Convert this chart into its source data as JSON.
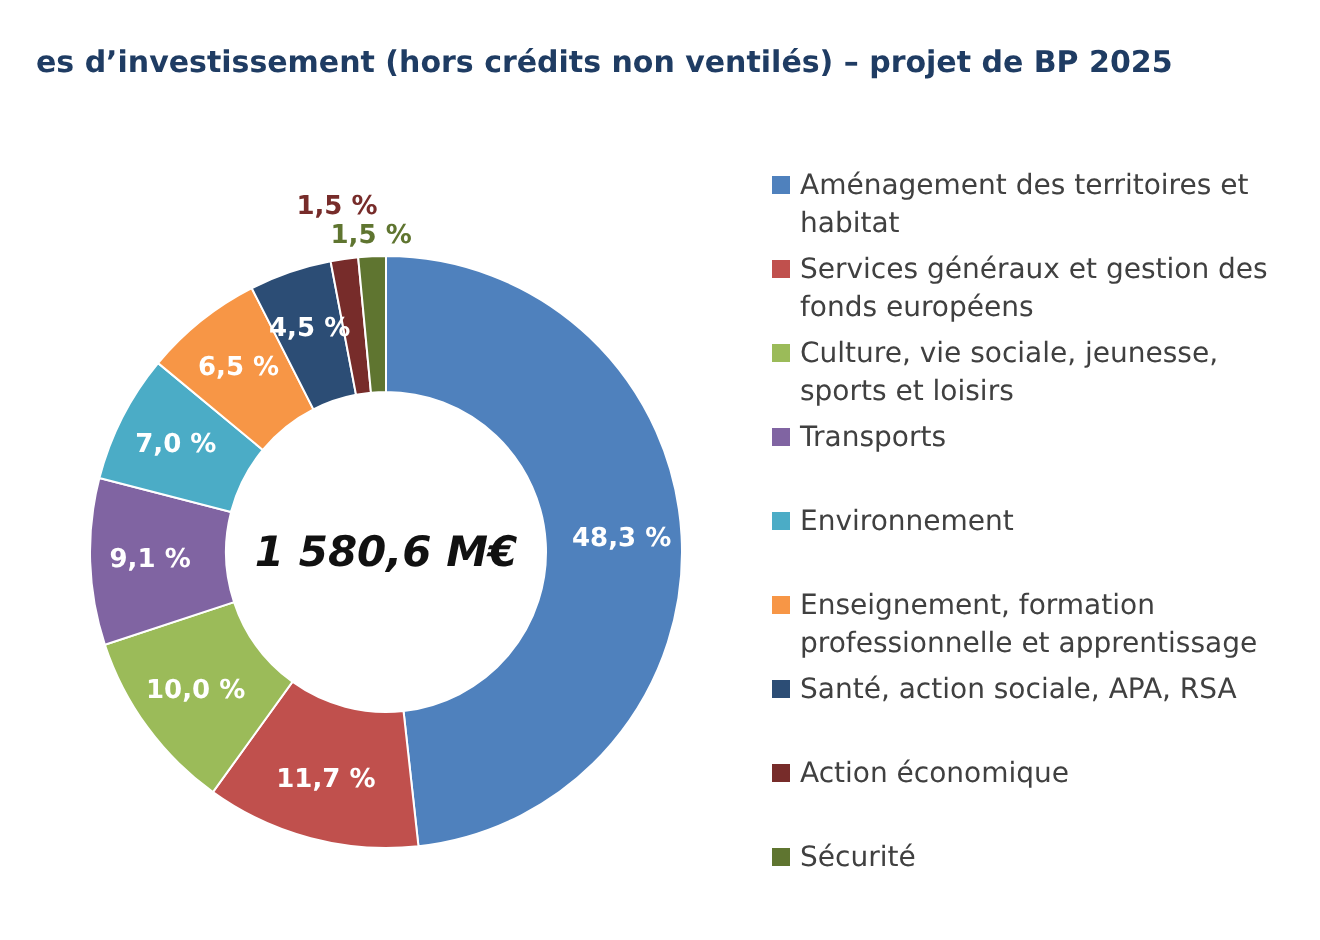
{
  "chart_data": {
    "type": "donut",
    "title": "es d’investissement (hors crédits non ventilés) – projet de BP 2025",
    "categories": [
      "Aménagement des territoires et habitat",
      "Services généraux et gestion des fonds européens",
      "Culture, vie sociale, jeunesse, sports et loisirs",
      "Transports",
      "Environnement",
      "Enseignement, formation professionnelle et apprentissage",
      "Santé, action sociale, APA, RSA",
      "Action économique",
      "Sécurité"
    ],
    "values": [
      48.3,
      11.7,
      10.0,
      9.1,
      7.0,
      6.5,
      4.5,
      1.5,
      1.5
    ],
    "value_labels": [
      "48,3 %",
      "11,7 %",
      "10,0 %",
      "9,1 %",
      "7,0 %",
      "6,5 %",
      "4,5 %",
      "1,5 %",
      "1,5 %"
    ],
    "colors": [
      "#4f81bd",
      "#c0504d",
      "#9bbb59",
      "#8064a2",
      "#4bacc6",
      "#f79646",
      "#2c4d75",
      "#772c2a",
      "#5f7530"
    ],
    "annotations": [
      "1 580,6 M€"
    ],
    "legend": "right"
  }
}
